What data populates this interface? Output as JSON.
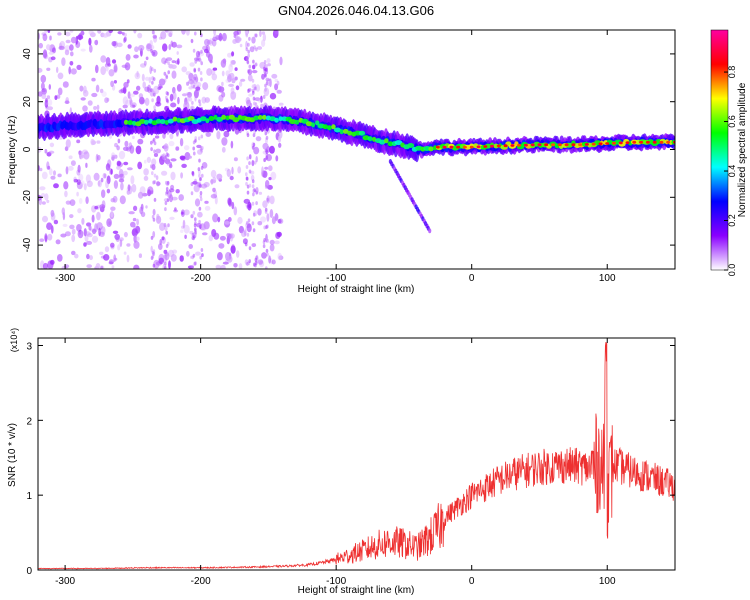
{
  "chart_data": [
    {
      "type": "heatmap",
      "title": "GN04.2026.046.04.13.G06",
      "xlabel": "Height of straight line (km)",
      "ylabel": "Frequency (Hz)",
      "xlim": [
        -320,
        150
      ],
      "ylim": [
        -50,
        50
      ],
      "xticks": [
        -300,
        -200,
        -100,
        0,
        100
      ],
      "yticks": [
        -40,
        -20,
        0,
        20,
        40
      ],
      "colorbar": {
        "label": "Normalized spectral amplitude",
        "range": [
          0,
          0.97
        ],
        "ticks": [
          0.0,
          0.2,
          0.4,
          0.6,
          0.8
        ],
        "tick_labels": [
          "0.0",
          "0.2",
          "0.4",
          "0.6",
          "0.8"
        ],
        "colormap": [
          "#ffffff",
          "#8a00ff",
          "#0000ff",
          "#00ffff",
          "#00ff00",
          "#ffff00",
          "#ff0000",
          "#ff00a0"
        ]
      },
      "ridge": {
        "x": [
          -320,
          -300,
          -260,
          -220,
          -180,
          -150,
          -130,
          -110,
          -95,
          -80,
          -70,
          -60,
          -52,
          -45,
          -40,
          -35,
          -30,
          -25,
          -20,
          -10,
          0,
          20,
          50,
          80,
          100,
          120,
          150
        ],
        "y": [
          9,
          10,
          11,
          12,
          13,
          13,
          12,
          10,
          8,
          6,
          4,
          3,
          2,
          1,
          0,
          0,
          1,
          1,
          1,
          1,
          1,
          1.5,
          2,
          2,
          2.5,
          3,
          3
        ]
      }
    },
    {
      "type": "line",
      "xlabel": "Height of straight line (km)",
      "ylabel": "SNR (10 * v/v)",
      "ylabel_scale": "(x10⁴)",
      "xlim": [
        -320,
        150
      ],
      "ylim": [
        0,
        3.1
      ],
      "xticks": [
        -300,
        -200,
        -100,
        0,
        100
      ],
      "yticks": [
        0,
        1,
        2,
        3
      ],
      "series": [
        {
          "color": "#ee3030",
          "x": [
            -320,
            -280,
            -240,
            -200,
            -160,
            -140,
            -120,
            -110,
            -100,
            -90,
            -80,
            -70,
            -60,
            -50,
            -40,
            -30,
            -25,
            -20,
            -10,
            0,
            10,
            20,
            30,
            40,
            50,
            60,
            70,
            80,
            90,
            95,
            98,
            100,
            105,
            110,
            120,
            130,
            140,
            150
          ],
          "y": [
            0.02,
            0.02,
            0.03,
            0.03,
            0.04,
            0.05,
            0.07,
            0.1,
            0.14,
            0.2,
            0.26,
            0.33,
            0.38,
            0.35,
            0.3,
            0.45,
            0.55,
            0.7,
            0.85,
            1.0,
            1.1,
            1.2,
            1.28,
            1.33,
            1.37,
            1.39,
            1.4,
            1.38,
            1.35,
            1.5,
            1.2,
            1.1,
            1.4,
            1.38,
            1.3,
            1.25,
            1.18,
            1.12
          ]
        }
      ]
    }
  ]
}
